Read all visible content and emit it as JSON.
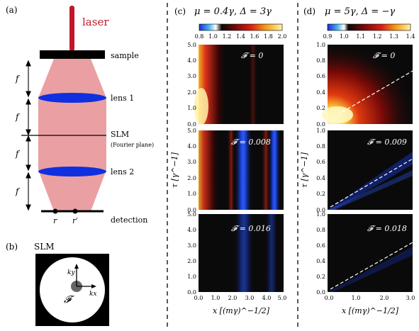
{
  "panels": {
    "a": {
      "label": "(a)",
      "laser_label": "laser",
      "sample_label": "sample",
      "lens1_label": "lens 1",
      "slm_label": "SLM",
      "slm_sub_label": "(Fourier plane)",
      "lens2_label": "lens 2",
      "detection_label": "detection",
      "f_label": "f",
      "r_label": "r",
      "r_prime_label": "r′"
    },
    "b": {
      "label": "(b)",
      "title": "SLM",
      "ky_label": "ky",
      "kx_label": "kx",
      "F_label": "𝓕"
    },
    "c": {
      "label": "(c)",
      "title": "μ = 0.4γ,  Δ = 3γ",
      "colorbar_ticks": [
        "0.8",
        "1.0",
        "1.2",
        "1.4",
        "1.6",
        "1.8",
        "2.0"
      ],
      "y_ticks": [
        "0.0",
        "1.0",
        "2.0",
        "3.0",
        "4.0",
        "5.0"
      ],
      "x_ticks": [
        "0.0",
        "1.0",
        "2.0",
        "3.0",
        "4.0",
        "5.0"
      ],
      "x_axis_label": "x [(mγ)^−1/2]",
      "y_axis_label": "τ [γ^−1]",
      "subplots": [
        {
          "label": "𝓕 = 0"
        },
        {
          "label": "𝓕 = 0.008"
        },
        {
          "label": "𝓕 = 0.016"
        }
      ]
    },
    "d": {
      "label": "(d)",
      "title": "μ = 5γ,  Δ = −γ",
      "colorbar_ticks": [
        "0.9",
        "1.0",
        "1.1",
        "1.2",
        "1.3",
        "1.4"
      ],
      "y_ticks": [
        "0.0",
        "0.2",
        "0.4",
        "0.6",
        "0.8",
        "1.0"
      ],
      "x_ticks": [
        "0.0",
        "1.0",
        "2.0",
        "3.0"
      ],
      "x_axis_label": "x [(mγ)^−1/2]",
      "y_axis_label": "τ [γ^−1]",
      "subplots": [
        {
          "label": "𝓕 = 0"
        },
        {
          "label": "𝓕 = 0.009"
        },
        {
          "label": "𝓕 = 0.018"
        }
      ]
    }
  },
  "colors": {
    "laser": "#c0182a",
    "beam": "#eaa0a3",
    "lens": "#1030e0",
    "heatmap_bg": "#0a0a0a"
  }
}
